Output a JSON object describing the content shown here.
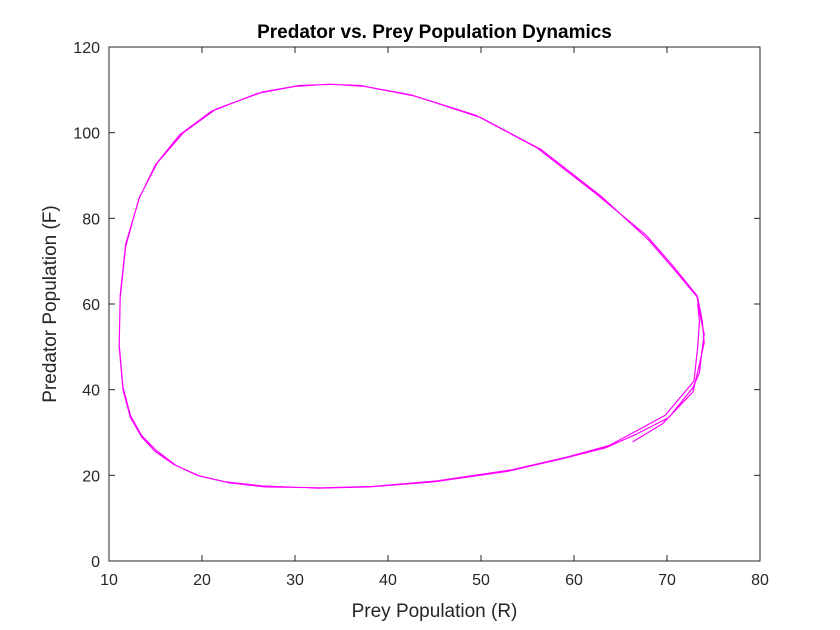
{
  "chart_data": {
    "type": "line",
    "title": "Predator vs. Prey Population Dynamics",
    "xlabel": "Prey Population (R)",
    "ylabel": "Predator Population (F)",
    "xlim": [
      10,
      80
    ],
    "ylim": [
      0,
      120
    ],
    "xticks": [
      10,
      20,
      30,
      40,
      50,
      60,
      70,
      80
    ],
    "yticks": [
      0,
      20,
      40,
      60,
      80,
      100,
      120
    ],
    "grid": false,
    "box": true,
    "series": [
      {
        "color": "#ff00ff",
        "x": [
          66.3,
          69.5,
          72.8,
          73.5,
          74.0,
          73.8,
          73.3,
          70.8,
          68.0,
          63.0,
          56.5,
          50.0,
          43.0,
          37.5,
          34.0,
          30.5,
          26.5,
          21.5,
          18.0,
          15.2,
          13.3,
          11.8,
          11.2,
          11.1,
          11.5,
          12.3,
          13.5,
          15.0,
          17.0,
          19.5,
          22.5,
          26.5,
          32.5,
          38.0,
          45.0,
          53.0,
          59.0,
          63.5,
          66.6,
          70.2,
          72.8,
          73.5,
          73.7,
          74.0,
          73.6,
          73.2,
          70.6,
          67.8,
          62.5,
          56.0,
          49.5,
          42.5,
          37.0,
          33.5,
          30.0,
          26.0,
          21.0,
          17.6,
          15.0,
          13.2,
          11.8,
          11.2,
          11.1,
          11.5,
          12.3,
          13.5,
          15.1,
          17.2,
          19.8,
          22.8,
          26.8,
          32.8,
          38.3,
          45.3,
          53.3,
          59.3,
          63.8,
          66.4,
          69.8,
          72.9,
          73.3,
          73.5,
          73.3
        ],
        "y": [
          27.8,
          32.0,
          39.5,
          46.0,
          51.0,
          56.0,
          61.5,
          68.0,
          75.0,
          85.0,
          96.0,
          103.5,
          108.5,
          110.8,
          111.3,
          111.0,
          109.5,
          105.5,
          100.0,
          93.0,
          85.0,
          74.0,
          62.0,
          50.0,
          40.0,
          33.5,
          29.0,
          25.5,
          22.5,
          20.0,
          18.5,
          17.5,
          17.0,
          17.3,
          18.5,
          21.0,
          24.0,
          26.5,
          29.5,
          33.5,
          40.5,
          44.0,
          48.0,
          53.0,
          57.0,
          62.0,
          69.0,
          76.0,
          85.5,
          96.5,
          104.0,
          108.8,
          111.0,
          111.3,
          110.8,
          109.2,
          105.0,
          99.5,
          92.5,
          84.5,
          73.5,
          61.5,
          50.5,
          40.5,
          34.0,
          29.3,
          25.8,
          22.3,
          19.8,
          18.3,
          17.3,
          17.1,
          17.4,
          18.7,
          21.3,
          24.3,
          27.0,
          30.0,
          34.0,
          42.0,
          50.0,
          56.0,
          60.0
        ]
      }
    ]
  }
}
